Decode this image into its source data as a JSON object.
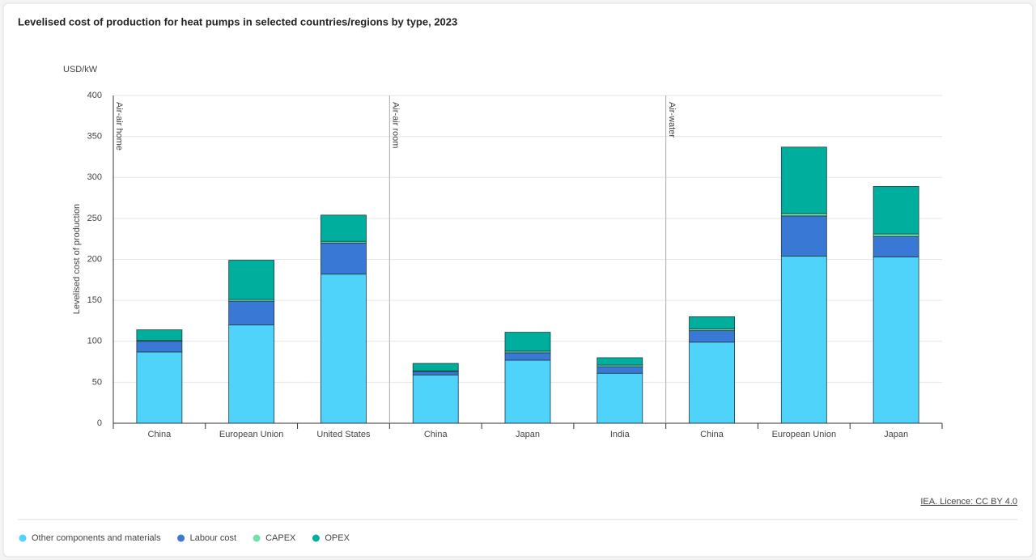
{
  "chart_data": {
    "type": "stacked_bar",
    "title": "Levelised cost of production for heat pumps in selected countries/regions by type, 2023",
    "y_unit": "USD/kW",
    "y_label": "Levelised cost of production",
    "groups": [
      {
        "label": "Air-air home",
        "categories": [
          "China",
          "European Union",
          "United States"
        ]
      },
      {
        "label": "Air-air room",
        "categories": [
          "China",
          "Japan",
          "India"
        ]
      },
      {
        "label": "Air-water",
        "categories": [
          "China",
          "European Union",
          "Japan"
        ]
      }
    ],
    "series": [
      {
        "name": "Other components and materials",
        "color": "#4fd3fb",
        "values": [
          87,
          120,
          182,
          59,
          77,
          61,
          99,
          204,
          203
        ]
      },
      {
        "name": "Labour cost",
        "color": "#3a78d6",
        "values": [
          13,
          29,
          38,
          4,
          9,
          8,
          14,
          49,
          25
        ]
      },
      {
        "name": "CAPEX",
        "color": "#6fe3a6",
        "values": [
          1,
          2,
          2,
          1,
          2,
          2,
          2,
          3,
          3
        ]
      },
      {
        "name": "OPEX",
        "color": "#00ae9e",
        "values": [
          13,
          48,
          32,
          9,
          23,
          9,
          15,
          81,
          58
        ]
      }
    ],
    "ylim": [
      0,
      400
    ],
    "yticks": [
      0,
      50,
      100,
      150,
      200,
      250,
      300,
      350,
      400
    ],
    "grid": true,
    "source": "IEA. Licence: CC BY 4.0"
  }
}
